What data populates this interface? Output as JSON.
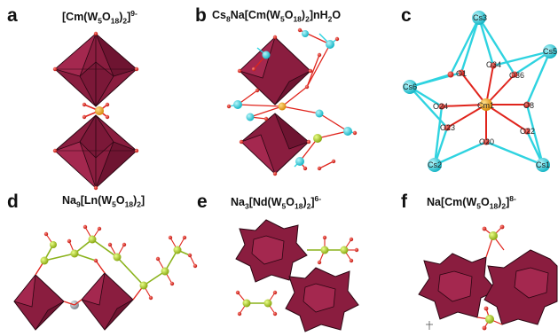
{
  "colors": {
    "polyhedron": "#8a1d3f",
    "polyhedron_edge": "#2b0612",
    "oxygen": "#e0241c",
    "tungsten_bond": "#e0241c",
    "cesium": "#2fd3e0",
    "curium": "#f2a81c",
    "sodium": "#b8d62a",
    "lanthanide": "#9aa0a8"
  },
  "panels": [
    {
      "letter": "a",
      "title": {
        "base": "[Cm(W",
        "s1": "5",
        "m1": "O",
        "s2": "18",
        "m2": ")",
        "s3": "2",
        "m3": "]",
        "sup": "9-"
      }
    },
    {
      "letter": "b",
      "title": {
        "base": "Cs",
        "s1": "8",
        "m1": "Na[Cm(W",
        "s2": "5",
        "m2": "O",
        "s3": "18",
        "m3": ")",
        "s4": "2",
        "m4": "]nH",
        "s5": "2",
        "m5": "O"
      }
    },
    {
      "letter": "c",
      "atom_labels": [
        "Cs3",
        "Cs5",
        "Cs6",
        "Cs2",
        "Cs1",
        "Cm1",
        "O1",
        "O34",
        "O36",
        "O24",
        "O8",
        "O23",
        "O20",
        "O22"
      ]
    },
    {
      "letter": "d",
      "title": {
        "base": "Na",
        "s1": "9",
        "m1": "[Ln(W",
        "s2": "5",
        "m2": "O",
        "s3": "18",
        "m3": ")",
        "s4": "2",
        "m4": "]"
      }
    },
    {
      "letter": "e",
      "title": {
        "base": "Na",
        "s1": "3",
        "m1": "[Nd(W",
        "s2": "5",
        "m2": "O",
        "s3": "18",
        "m3": ")",
        "s4": "2",
        "m4": "]",
        "sup": "6-"
      }
    },
    {
      "letter": "f",
      "title": {
        "base": "Na[Cm(W",
        "s1": "5",
        "m1": "O",
        "s2": "18",
        "m2": ")",
        "s3": "2",
        "m3": "]",
        "sup": "8-"
      }
    }
  ]
}
